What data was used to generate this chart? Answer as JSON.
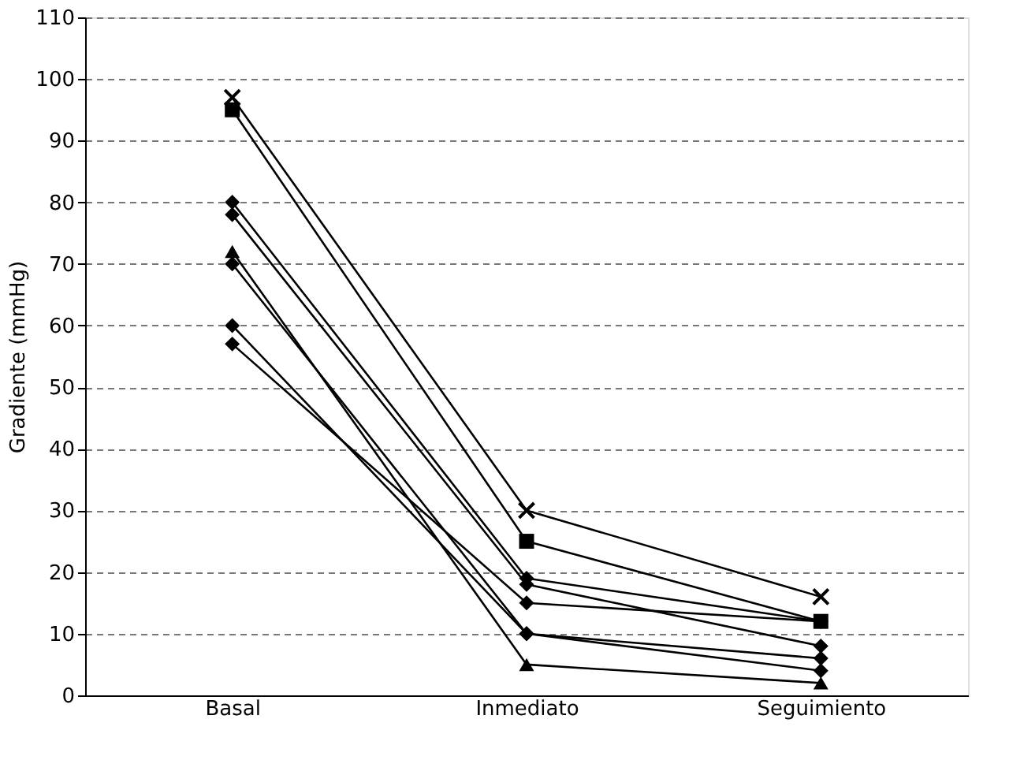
{
  "chart_data": {
    "type": "line",
    "ylabel": "Gradiente (mmHg)",
    "categories": [
      "Basal",
      "Inmediato",
      "Seguimiento"
    ],
    "ylim": [
      0,
      110
    ],
    "yticks": [
      0,
      10,
      20,
      30,
      40,
      50,
      60,
      70,
      80,
      90,
      100,
      110
    ],
    "grid": "y",
    "line_style": "solid",
    "series": [
      {
        "color": "#000000",
        "marker": "cross",
        "values": [
          97,
          30,
          16
        ]
      },
      {
        "color": "#000000",
        "marker": "square",
        "values": [
          95,
          25,
          12
        ]
      },
      {
        "color": "#000000",
        "marker": "diamond",
        "values": [
          80,
          19,
          12
        ]
      },
      {
        "color": "#000000",
        "marker": "diamond",
        "values": [
          78,
          18,
          8
        ]
      },
      {
        "color": "#000000",
        "marker": "triangle",
        "values": [
          72,
          5,
          2
        ]
      },
      {
        "color": "#000000",
        "marker": "diamond",
        "values": [
          70,
          10,
          4
        ]
      },
      {
        "color": "#000000",
        "marker": "diamond",
        "values": [
          60,
          10,
          6
        ]
      },
      {
        "color": "#000000",
        "marker": "diamond",
        "values": [
          57,
          15,
          12
        ]
      }
    ]
  }
}
